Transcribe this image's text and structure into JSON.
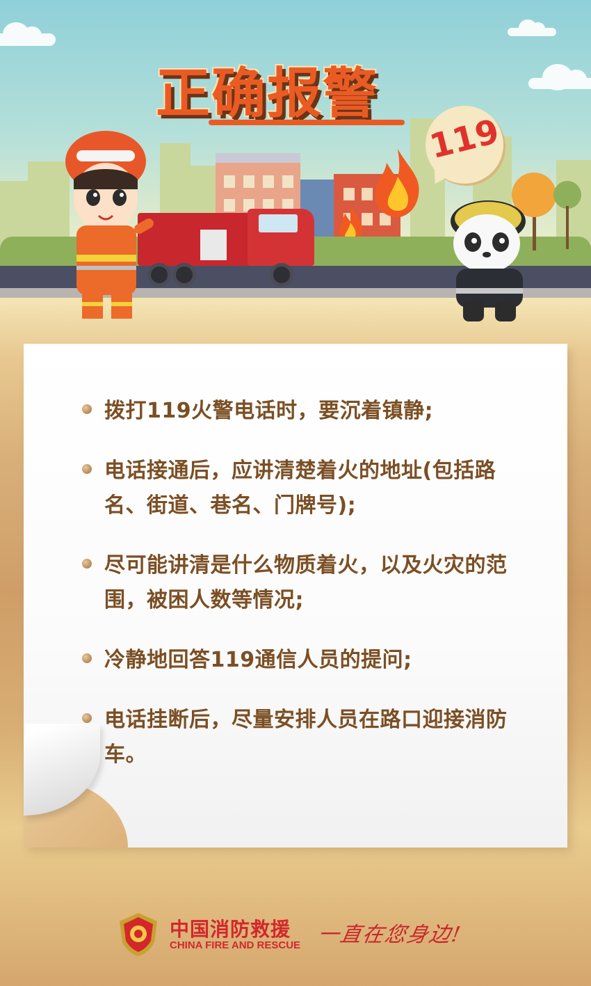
{
  "header": {
    "title": "正确报警",
    "badge": "119"
  },
  "tips": [
    {
      "text": "拨打119火警电话时，要沉着镇静;"
    },
    {
      "text": "电话接通后，应讲清楚着火的地址(包括路名、街道、巷名、门牌号);"
    },
    {
      "text": "尽可能讲清是什么物质着火，以及火灾的范围，被困人数等情况;"
    },
    {
      "text": "冷静地回答119通信人员的提问;"
    },
    {
      "text": "电话挂断后，尽量安排人员在路口迎接消防车。"
    }
  ],
  "footer": {
    "org_cn": "中国消防救援",
    "org_en": "CHINA FIRE AND RESCUE",
    "slogan": "一直在您身边!"
  },
  "colors": {
    "title": "#ea5b24",
    "text": "#7b4f24",
    "brand_red": "#d3272a"
  },
  "icons": [
    "firefighter-character",
    "panda-firefighter-character",
    "fire-truck",
    "flame-icon",
    "fire-rescue-emblem-icon"
  ]
}
